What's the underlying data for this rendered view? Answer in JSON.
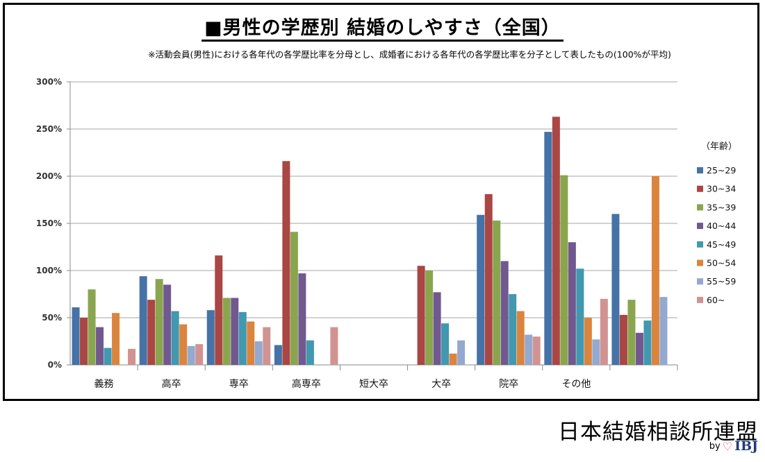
{
  "header": {
    "title": "■男性の学歴別 結婚のしやすさ（全国）",
    "note": "※活動会員(男性)における各年代の各学歴比率を分母とし、成婚者における各年代の各学歴比率を分子として表したもの(100%が平均)"
  },
  "footer": {
    "organization": "日本結婚相談所連盟",
    "by": "by",
    "logo": "IBJ"
  },
  "chart_data": {
    "type": "bar",
    "title": "■男性の学歴別 結婚のしやすさ（全国）",
    "ylim": [
      0,
      300
    ],
    "yticks": [
      "0%",
      "50%",
      "100%",
      "150%",
      "200%",
      "250%",
      "300%"
    ],
    "ytick_values": [
      0,
      50,
      100,
      150,
      200,
      250,
      300
    ],
    "grid": true,
    "legend_title": "（年齢）",
    "legend_position": "right",
    "categories": [
      "義務",
      "高卒",
      "専卒",
      "高専卒",
      "短大卒",
      "大卒",
      "院卒",
      "その他",
      ""
    ],
    "series": [
      {
        "name": "25~29",
        "color": "#4572A7",
        "values": [
          61,
          94,
          58,
          21,
          null,
          null,
          159,
          247,
          160
        ]
      },
      {
        "name": "30~34",
        "color": "#AA4643",
        "values": [
          50,
          69,
          116,
          216,
          null,
          105,
          181,
          263,
          53
        ]
      },
      {
        "name": "35~39",
        "color": "#89A54E",
        "values": [
          80,
          91,
          71,
          141,
          null,
          100,
          153,
          201,
          69
        ]
      },
      {
        "name": "40~44",
        "color": "#71588F",
        "values": [
          40,
          85,
          71,
          97,
          null,
          77,
          110,
          130,
          34
        ]
      },
      {
        "name": "45~49",
        "color": "#4198AF",
        "values": [
          18,
          57,
          56,
          26,
          null,
          44,
          75,
          102,
          47
        ]
      },
      {
        "name": "50~54",
        "color": "#DB843D",
        "values": [
          55,
          43,
          46,
          null,
          null,
          12,
          57,
          50,
          200
        ]
      },
      {
        "name": "55~59",
        "color": "#93A9CF",
        "values": [
          null,
          20,
          25,
          null,
          null,
          26,
          32,
          27,
          72
        ]
      },
      {
        "name": "60~",
        "color": "#D19392",
        "values": [
          17,
          22,
          40,
          40,
          null,
          null,
          30,
          70,
          null
        ]
      }
    ]
  }
}
